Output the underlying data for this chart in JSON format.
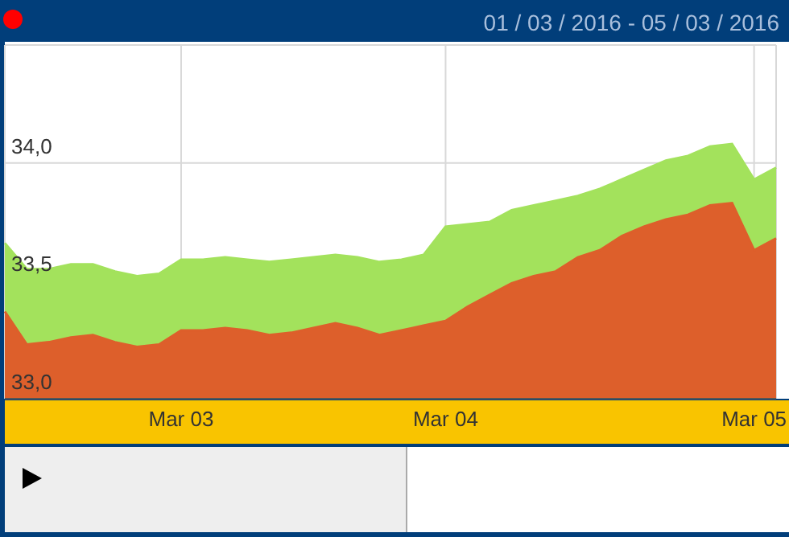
{
  "chart_data": {
    "type": "area",
    "title": "01 / 03 / 2016 - 05 / 03 / 2016",
    "categories": [
      null,
      null,
      null,
      null,
      null,
      null,
      null,
      null,
      "Mar 03",
      null,
      null,
      null,
      null,
      null,
      null,
      null,
      null,
      null,
      null,
      null,
      "Mar 04",
      null,
      null,
      null,
      null,
      null,
      null,
      null,
      null,
      null,
      null,
      null,
      null,
      null,
      "Mar 05",
      null
    ],
    "series": [
      {
        "color": "#a3e25c",
        "values": [
          33.66,
          33.55,
          33.55,
          33.57,
          33.57,
          33.54,
          33.52,
          33.53,
          33.59,
          33.59,
          33.6,
          33.59,
          33.58,
          33.59,
          33.6,
          33.61,
          33.6,
          33.58,
          33.59,
          33.61,
          33.73,
          33.74,
          33.75,
          33.8,
          33.82,
          33.84,
          33.86,
          33.89,
          33.93,
          33.97,
          34.01,
          34.03,
          34.07,
          34.08,
          33.93,
          33.98
        ]
      },
      {
        "color": "#dd5f2b",
        "values": [
          33.37,
          33.23,
          33.24,
          33.26,
          33.27,
          33.24,
          33.22,
          33.23,
          33.29,
          33.29,
          33.3,
          33.29,
          33.27,
          33.28,
          33.3,
          33.32,
          33.3,
          33.27,
          33.29,
          33.31,
          33.33,
          33.39,
          33.44,
          33.49,
          33.52,
          33.54,
          33.6,
          33.63,
          33.69,
          33.73,
          33.76,
          33.78,
          33.82,
          33.83,
          33.63,
          33.68
        ]
      }
    ],
    "ylim": [
      33,
      34.5
    ],
    "yticks": [
      {
        "value": 33,
        "label": "33,0"
      },
      {
        "value": 33.5,
        "label": "33,5"
      },
      {
        "value": 34,
        "label": "34,0"
      }
    ],
    "grid": true
  }
}
